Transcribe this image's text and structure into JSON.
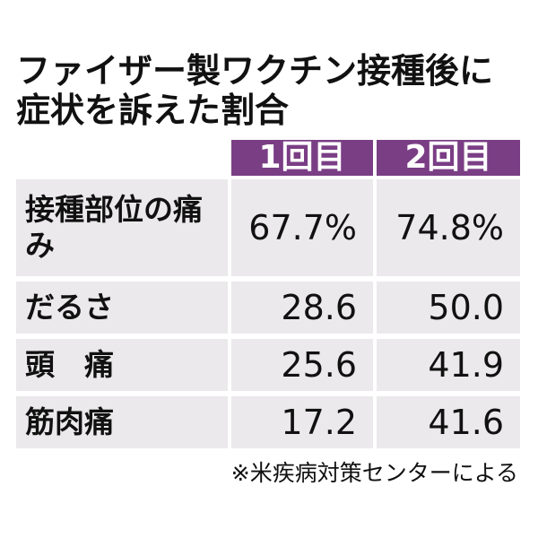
{
  "header": {
    "title_lines": [
      "ファイザー製ワクチン接種後に",
      "症状を訴えた割合"
    ]
  },
  "table": {
    "columns": [
      "1回目",
      "2回目"
    ],
    "rows": [
      [
        "接種部位の痛み",
        "67.7%",
        "74.8%"
      ],
      [
        "だるさ",
        "28.6",
        "50.0"
      ],
      [
        "頭　痛",
        "25.6",
        "41.9"
      ],
      [
        "筋肉痛",
        "17.2",
        "41.6"
      ]
    ]
  },
  "footnote": "※米疾病対策センターによる"
}
